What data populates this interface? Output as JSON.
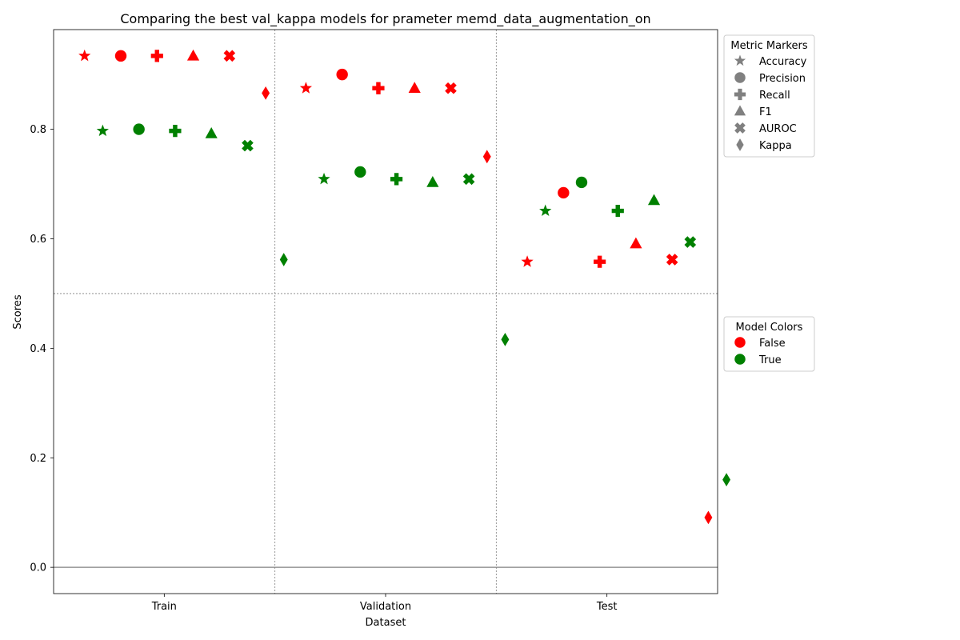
{
  "chart_data": {
    "type": "scatter",
    "title": "Comparing the best val_kappa models for prameter memd_data_augmentation_on",
    "xlabel": "Dataset",
    "ylabel": "Scores",
    "categories": [
      "Train",
      "Validation",
      "Test"
    ],
    "metrics": [
      "Accuracy",
      "Precision",
      "Recall",
      "F1",
      "AUROC",
      "Kappa"
    ],
    "marker_shapes": [
      "star",
      "circle",
      "plus",
      "triangle",
      "x",
      "diamond"
    ],
    "ylim": [
      -0.048,
      0.982
    ],
    "yticks": [
      "0.0",
      "0.2",
      "0.4",
      "0.6",
      "0.8"
    ],
    "ytick_values": [
      0.0,
      0.2,
      0.4,
      0.6,
      0.8
    ],
    "hlines": [
      0.0,
      0.5
    ],
    "grid": "vertical separators between datasets, dashed line at 0.5",
    "series": [
      {
        "name": "False",
        "color": "#ff0000",
        "values": [
          [
            0.934,
            0.934,
            0.934,
            0.934,
            0.934,
            0.866
          ],
          [
            0.875,
            0.9,
            0.875,
            0.875,
            0.875,
            0.75
          ],
          [
            0.558,
            0.684,
            0.558,
            0.591,
            0.562,
            0.091
          ]
        ]
      },
      {
        "name": "True",
        "color": "#008000",
        "values": [
          [
            0.797,
            0.8,
            0.797,
            0.792,
            0.77,
            0.562
          ],
          [
            0.709,
            0.722,
            0.709,
            0.703,
            0.709,
            0.416
          ],
          [
            0.651,
            0.703,
            0.651,
            0.67,
            0.594,
            0.16
          ]
        ]
      }
    ],
    "legends": [
      {
        "title": "Metric Markers",
        "entries": [
          "Accuracy",
          "Precision",
          "Recall",
          "F1",
          "AUROC",
          "Kappa"
        ],
        "color": "#808080",
        "placement": "upper right outside"
      },
      {
        "title": "Model Colors",
        "entries": [
          "False",
          "True"
        ],
        "colors": [
          "#ff0000",
          "#008000"
        ],
        "placement": "center right outside"
      }
    ]
  }
}
